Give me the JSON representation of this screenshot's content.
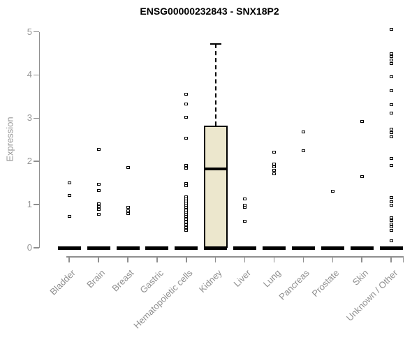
{
  "chart_data": {
    "type": "boxplot",
    "title": "ENSG00000232843 - SNX18P2",
    "ylabel": "Expression",
    "xlabel": "",
    "ylim": [
      0,
      5
    ],
    "yticks": [
      0,
      1,
      2,
      3,
      4,
      5
    ],
    "grid": false,
    "legend": "none",
    "point_style": "open-square",
    "colors": {
      "axis": "#8f8f8f",
      "tick_label": "#969696",
      "title": "#000000",
      "point": "#000000",
      "box_fill": "#ECE7CD",
      "box_border": "#000000"
    },
    "categories": [
      "Bladder",
      "Brain",
      "Breast",
      "Gastric",
      "Hematopoietic cells",
      "Kidney",
      "Liver",
      "Lung",
      "Pancreas",
      "Prostate",
      "Skin",
      "Unknown / Other"
    ],
    "series": [
      {
        "name": "Bladder",
        "has_zero_cluster": true,
        "points": [
          1.5,
          1.21,
          0.73
        ]
      },
      {
        "name": "Brain",
        "has_zero_cluster": true,
        "points": [
          2.28,
          1.47,
          1.32,
          1.02,
          0.95,
          0.89,
          0.78
        ]
      },
      {
        "name": "Breast",
        "has_zero_cluster": true,
        "points": [
          1.85,
          0.93,
          0.86,
          0.79
        ]
      },
      {
        "name": "Gastric",
        "has_zero_cluster": true,
        "points": []
      },
      {
        "name": "Hematopoietic cells",
        "has_zero_cluster": true,
        "points": [
          3.55,
          3.32,
          3.02,
          2.53,
          1.9,
          1.84,
          1.48,
          1.43,
          1.18,
          1.13,
          1.08,
          1.03,
          0.98,
          0.93,
          0.88,
          0.83,
          0.78,
          0.73,
          0.66,
          0.6,
          0.54,
          0.47,
          0.4
        ]
      },
      {
        "name": "Kidney",
        "has_zero_cluster": true,
        "points": []
      },
      {
        "name": "Liver",
        "has_zero_cluster": true,
        "points": [
          1.13,
          0.98,
          0.93,
          0.62
        ]
      },
      {
        "name": "Lung",
        "has_zero_cluster": true,
        "points": [
          2.21,
          1.94,
          1.87,
          1.8,
          1.72
        ]
      },
      {
        "name": "Pancreas",
        "has_zero_cluster": true,
        "points": [
          2.68,
          2.25
        ]
      },
      {
        "name": "Prostate",
        "has_zero_cluster": true,
        "points": [
          1.31
        ]
      },
      {
        "name": "Skin",
        "has_zero_cluster": true,
        "points": [
          2.92,
          1.64
        ]
      },
      {
        "name": "Unknown / Other",
        "has_zero_cluster": true,
        "points": [
          5.05,
          4.49,
          4.42,
          4.35,
          4.27,
          3.95,
          3.63,
          3.31,
          3.11,
          2.74,
          2.66,
          2.57,
          2.07,
          1.91,
          1.16,
          1.07,
          0.98,
          0.7,
          0.63,
          0.55,
          0.48,
          0.4,
          0.16
        ]
      }
    ],
    "boxplots": [
      {
        "category": "Kidney",
        "q1": 0,
        "median": 1.82,
        "q3": 2.82,
        "whisker_low": 0,
        "whisker_high": 4.72
      }
    ]
  }
}
